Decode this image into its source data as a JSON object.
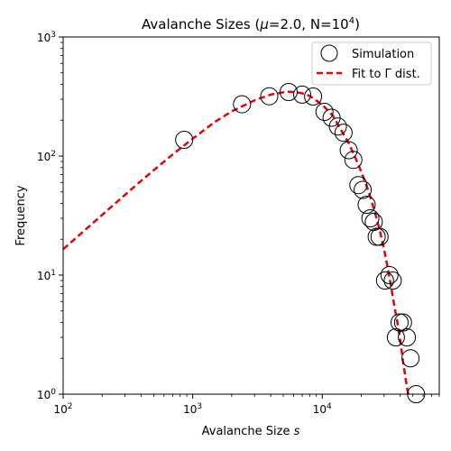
{
  "chart_data": {
    "type": "scatter",
    "title_prefix": "Avalanche Sizes (",
    "title_mu_symbol": "μ",
    "title_middle": "=2.0, N=10",
    "title_exponent": "4",
    "title_suffix": ")",
    "xlabel_prefix": "Avalanche Size ",
    "xlabel_var": "s",
    "ylabel": "Frequency",
    "xscale": "log",
    "yscale": "log",
    "xlim": [
      100,
      80000
    ],
    "ylim": [
      1,
      1000
    ],
    "grid": false,
    "legend_position": "top-right",
    "x_ticks": [
      {
        "value": 100,
        "base": "10",
        "exp": "2"
      },
      {
        "value": 1000,
        "base": "10",
        "exp": "3"
      },
      {
        "value": 10000,
        "base": "10",
        "exp": "4"
      }
    ],
    "y_ticks": [
      {
        "value": 1,
        "base": "10",
        "exp": "0"
      },
      {
        "value": 10,
        "base": "10",
        "exp": "1"
      },
      {
        "value": 100,
        "base": "10",
        "exp": "2"
      },
      {
        "value": 1000,
        "base": "10",
        "exp": "3"
      }
    ],
    "series": [
      {
        "name": "Simulation",
        "kind": "scatter",
        "marker": "open-circle",
        "color": "#000000",
        "x": [
          860,
          2400,
          3900,
          5500,
          7000,
          8500,
          10400,
          11800,
          13200,
          14600,
          16000,
          17400,
          19000,
          20500,
          22000,
          23500,
          25000,
          26300,
          27700,
          30500,
          33000,
          35000,
          37000,
          39500,
          42000,
          45000,
          48000,
          53000
        ],
        "y": [
          137,
          272,
          318,
          345,
          328,
          316,
          235,
          210,
          177,
          157,
          112,
          93,
          57,
          52,
          39,
          30,
          28,
          21,
          21,
          9,
          10,
          9,
          3,
          4,
          4,
          3,
          2,
          1
        ]
      },
      {
        "name": "Fit to Γ dist.",
        "kind": "line",
        "style": "dashed",
        "color": "#e8000b",
        "x": [
          100,
          200,
          400,
          700,
          1000,
          1500,
          2000,
          3000,
          4000,
          5000,
          5500,
          6000,
          7000,
          8000,
          10000,
          12000,
          14000,
          16000,
          18000,
          20000,
          22000,
          24000,
          26000,
          28000,
          30000,
          32000,
          34000,
          36000,
          38000,
          40000,
          42000,
          44000,
          46000
        ],
        "y": [
          16.5,
          32,
          62,
          103,
          140,
          195,
          237,
          294,
          328,
          343,
          347,
          345,
          337,
          320,
          270,
          220,
          165,
          128,
          97,
          74,
          56,
          42,
          31,
          23,
          16.5,
          11.5,
          8,
          5.5,
          4,
          2.8,
          1.9,
          1.35,
          1
        ]
      }
    ]
  }
}
